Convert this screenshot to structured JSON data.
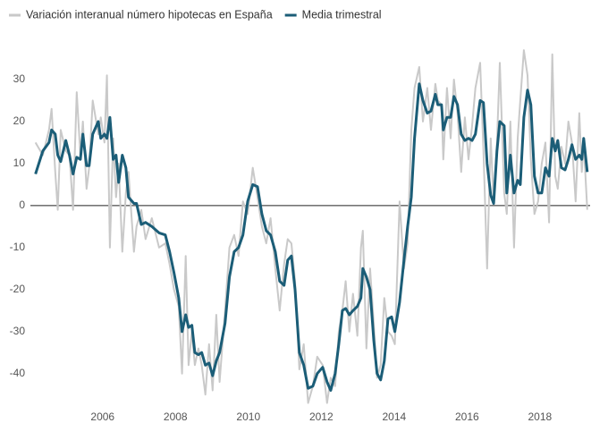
{
  "chart_data": {
    "type": "line",
    "x": [
      2004.16,
      2004.36,
      2004.53,
      2004.6,
      2004.7,
      2004.77,
      2004.85,
      2004.99,
      2005.09,
      2005.19,
      2005.29,
      2005.39,
      2005.46,
      2005.56,
      2005.63,
      2005.73,
      2005.88,
      2005.95,
      2006.05,
      2006.12,
      2006.2,
      2006.29,
      2006.37,
      2006.44,
      2006.54,
      2006.64,
      2006.71,
      2006.86,
      2006.93,
      2007.06,
      2007.18,
      2007.35,
      2007.55,
      2007.72,
      2007.84,
      2007.96,
      2008.09,
      2008.18,
      2008.28,
      2008.36,
      2008.45,
      2008.53,
      2008.63,
      2008.72,
      2008.82,
      2008.92,
      2009.02,
      2009.12,
      2009.21,
      2009.36,
      2009.48,
      2009.61,
      2009.73,
      2009.85,
      2009.98,
      2010.12,
      2010.25,
      2010.37,
      2010.49,
      2010.61,
      2010.74,
      2010.86,
      2010.98,
      2011.08,
      2011.18,
      2011.28,
      2011.4,
      2011.52,
      2011.64,
      2011.77,
      2011.89,
      2012.04,
      2012.16,
      2012.26,
      2012.38,
      2012.48,
      2012.58,
      2012.67,
      2012.77,
      2012.87,
      2012.99,
      2013.09,
      2013.14,
      2013.24,
      2013.34,
      2013.44,
      2013.53,
      2013.63,
      2013.73,
      2013.83,
      2013.93,
      2014.02,
      2014.15,
      2014.27,
      2014.37,
      2014.47,
      2014.56,
      2014.69,
      2014.79,
      2014.91,
      2015.01,
      2015.13,
      2015.2,
      2015.3,
      2015.35,
      2015.45,
      2015.55,
      2015.64,
      2015.74,
      2015.84,
      2015.94,
      2016.04,
      2016.14,
      2016.23,
      2016.36,
      2016.45,
      2016.55,
      2016.65,
      2016.73,
      2016.82,
      2016.9,
      2017.02,
      2017.09,
      2017.19,
      2017.29,
      2017.39,
      2017.46,
      2017.56,
      2017.66,
      2017.75,
      2017.85,
      2017.95,
      2018.05,
      2018.15,
      2018.25,
      2018.34,
      2018.42,
      2018.49,
      2018.59,
      2018.69,
      2018.78,
      2018.88,
      2018.98,
      2019.08,
      2019.15,
      2019.2,
      2019.3
    ],
    "series": [
      {
        "name": "Variación interanual número hipotecas en España",
        "color": "#c9c9c9",
        "values": [
          15,
          12,
          18,
          23,
          8,
          -1,
          18,
          13,
          12,
          -1,
          27,
          12,
          20,
          4,
          9,
          25,
          17,
          21,
          15,
          31,
          -10,
          16,
          2,
          10,
          -11,
          3,
          8,
          -11,
          -5,
          -1,
          -8,
          -3,
          -10,
          -9,
          -14,
          -20,
          -24,
          -40,
          -12,
          -38,
          -30,
          -38,
          -34,
          -38,
          -45,
          -33,
          -44,
          -26,
          -42,
          -25,
          -10,
          -7,
          -12,
          1,
          -2,
          9,
          2,
          -5,
          -9,
          -3,
          -15,
          -25,
          -14,
          -8,
          -9,
          -18,
          -39,
          -33,
          -47,
          -43,
          -36,
          -38,
          -47,
          -41,
          -43,
          -30,
          -25,
          -18,
          -30,
          -21,
          -31,
          -10,
          -6,
          -34,
          -15,
          -28,
          -41,
          -38,
          -22,
          -30,
          -31,
          -33,
          1,
          -15,
          -9,
          18,
          28,
          33,
          20,
          28,
          18,
          29,
          25,
          24,
          11,
          28,
          16,
          30,
          22,
          8,
          21,
          11,
          19,
          28,
          34,
          13,
          -15,
          16,
          1,
          15,
          34,
          3,
          -2,
          20,
          -10,
          16,
          25,
          37,
          31,
          11,
          -2,
          1,
          10,
          15,
          -4,
          36,
          7,
          4,
          14,
          10,
          20,
          15,
          1,
          22,
          8,
          15,
          -1
        ]
      },
      {
        "name": "Media trimestral",
        "color": "#1b5d77",
        "values": [
          7.5,
          13,
          15,
          18,
          17,
          12,
          10.5,
          15.5,
          12,
          7.5,
          11.5,
          11,
          17,
          9.5,
          9.5,
          17,
          20,
          16,
          17,
          16,
          21,
          11,
          12,
          5.5,
          12,
          9,
          2,
          0.5,
          0.5,
          -4.5,
          -4,
          -5,
          -6.5,
          -7,
          -11,
          -16,
          -22,
          -30,
          -26,
          -29,
          -28.5,
          -35,
          -35.5,
          -35,
          -38,
          -37.5,
          -40.5,
          -37,
          -35,
          -28,
          -17,
          -11,
          -10,
          -7,
          1,
          5,
          4.5,
          -2,
          -6,
          -7,
          -11,
          -18,
          -19,
          -13,
          -12,
          -20,
          -35,
          -38,
          -43.5,
          -43,
          -40,
          -38.5,
          -42,
          -44,
          -40,
          -33,
          -25,
          -24.5,
          -26,
          -25,
          -24,
          -22,
          -15,
          -17,
          -20,
          -32,
          -40,
          -41.5,
          -37,
          -27,
          -26.5,
          -30,
          -23,
          -13,
          -5,
          2,
          16,
          29,
          25,
          22,
          22.5,
          26.5,
          24,
          24,
          18,
          21,
          21,
          26,
          24,
          17,
          15.5,
          16,
          15.5,
          17,
          25,
          24.5,
          10,
          2.5,
          0.5,
          13,
          20,
          19,
          3,
          12,
          3,
          6,
          5,
          21,
          27.5,
          24,
          7,
          3,
          3,
          9,
          7,
          16,
          13,
          15.5,
          9,
          8.5,
          11,
          14.5,
          11,
          12,
          11,
          16,
          8
        ]
      }
    ],
    "xlim": [
      2003.7,
      2019.5
    ],
    "xticks": [
      2006,
      2008,
      2010,
      2012,
      2014,
      2016,
      2018
    ],
    "ylim": [
      -49,
      40
    ],
    "yticks": [
      -40,
      -30,
      -20,
      -10,
      0,
      10,
      20,
      30
    ],
    "grid": false,
    "zero_line": true,
    "legend": "top-left"
  }
}
